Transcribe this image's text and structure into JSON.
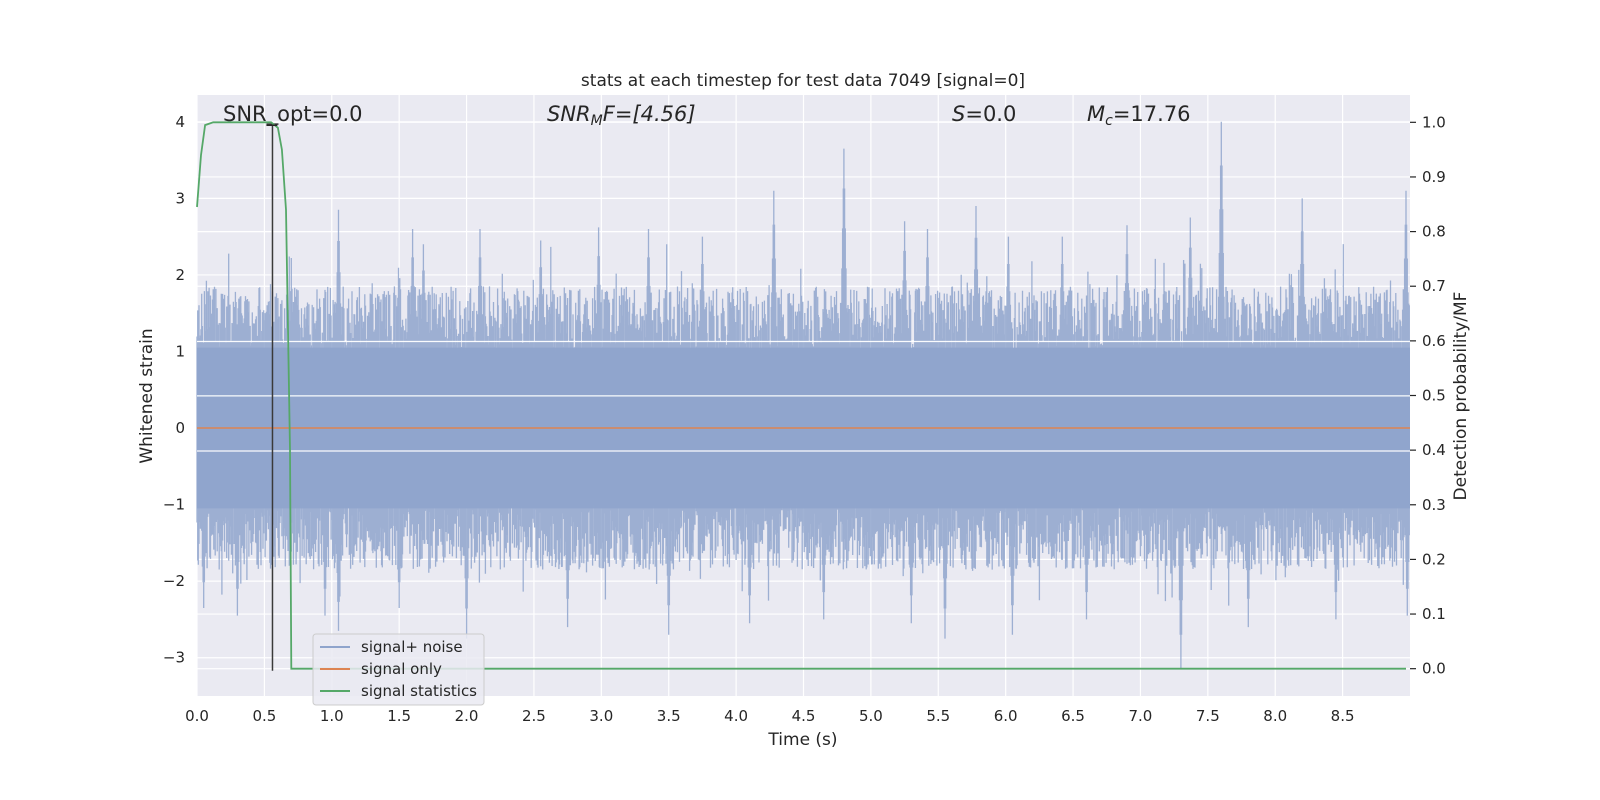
{
  "chart_data": {
    "type": "line",
    "title": "stats at each timestep for test data 7049 [signal=0]",
    "xlabel": "Time (s)",
    "ylabel": "Whitened strain",
    "y2label": "Detection probability/MF",
    "xlim": [
      0.0,
      9.0
    ],
    "ylim": [
      -3.5,
      4.35
    ],
    "y2lim": [
      -0.05,
      1.05
    ],
    "xticks": [
      "0.0",
      "0.5",
      "1.0",
      "1.5",
      "2.0",
      "2.5",
      "3.0",
      "3.5",
      "4.0",
      "4.5",
      "5.0",
      "5.5",
      "6.0",
      "6.5",
      "7.0",
      "7.5",
      "8.0",
      "8.5"
    ],
    "yticks": [
      "4",
      "3",
      "2",
      "1",
      "0",
      "−1",
      "−2",
      "−3"
    ],
    "y2ticks": [
      "1.0",
      "0.9",
      "0.8",
      "0.7",
      "0.6",
      "0.5",
      "0.4",
      "0.3",
      "0.2",
      "0.1",
      "0.0"
    ],
    "grid": true,
    "legend_position": "lower-left",
    "annotations": {
      "snr_opt": "SNR_opt=0.0",
      "snr_mf_base": "SNR",
      "snr_mf_sub": "M",
      "snr_mf_rest": "F=[4.56]",
      "s_italic": "S",
      "s_rest": "=0.0",
      "mc_base": "M",
      "mc_sub": "c",
      "mc_rest": "=17.76"
    },
    "series": [
      {
        "name": "signal+ noise",
        "color": "#8fa4cc",
        "envelope": true,
        "noise_amplitude": 1.0,
        "peaks": [
          [
            0.07,
            1.1
          ],
          [
            0.33,
            1.5
          ],
          [
            0.75,
            1.8
          ],
          [
            1.05,
            2.85
          ],
          [
            1.6,
            2.6
          ],
          [
            1.68,
            2.4
          ],
          [
            2.1,
            2.6
          ],
          [
            2.55,
            2.45
          ],
          [
            2.98,
            2.62
          ],
          [
            3.35,
            2.6
          ],
          [
            3.75,
            2.5
          ],
          [
            4.28,
            3.1
          ],
          [
            4.8,
            3.65
          ],
          [
            5.25,
            2.7
          ],
          [
            5.42,
            2.6
          ],
          [
            5.78,
            2.9
          ],
          [
            6.02,
            2.5
          ],
          [
            6.42,
            2.5
          ],
          [
            6.9,
            2.65
          ],
          [
            7.37,
            2.75
          ],
          [
            7.6,
            4.0
          ],
          [
            8.2,
            3.0
          ],
          [
            8.97,
            3.1
          ]
        ],
        "troughs": [
          [
            0.05,
            -2.35
          ],
          [
            0.3,
            -2.45
          ],
          [
            0.95,
            -2.45
          ],
          [
            1.05,
            -2.65
          ],
          [
            1.5,
            -2.35
          ],
          [
            2.0,
            -2.75
          ],
          [
            2.75,
            -2.6
          ],
          [
            3.5,
            -2.7
          ],
          [
            4.1,
            -2.55
          ],
          [
            4.65,
            -2.5
          ],
          [
            5.3,
            -2.55
          ],
          [
            5.55,
            -2.75
          ],
          [
            6.05,
            -2.7
          ],
          [
            6.6,
            -2.5
          ],
          [
            7.3,
            -3.15
          ],
          [
            7.8,
            -2.6
          ],
          [
            8.45,
            -2.5
          ],
          [
            8.98,
            -2.45
          ]
        ]
      },
      {
        "name": "signal only",
        "color": "#dd8452",
        "x": [
          0.0,
          9.0
        ],
        "y": [
          0.0,
          0.0
        ]
      },
      {
        "name": "signal statistics",
        "color": "#55a868",
        "axis": "right",
        "x": [
          0.0,
          0.03,
          0.06,
          0.12,
          0.2,
          0.3,
          0.4,
          0.5,
          0.55,
          0.6,
          0.63,
          0.66,
          0.69,
          0.7,
          0.75,
          1.0,
          2.0,
          3.0,
          4.0,
          5.0,
          6.0,
          7.0,
          8.0,
          8.5,
          8.97
        ],
        "y": [
          0.845,
          0.94,
          0.995,
          1.0,
          1.0,
          1.0,
          1.0,
          1.0,
          1.0,
          0.99,
          0.95,
          0.84,
          0.4,
          0.0,
          0.0,
          0.0,
          0.0,
          0.0,
          0.0,
          0.0,
          0.0,
          0.0,
          0.0,
          0.0,
          0.0
        ]
      }
    ],
    "marker_line": {
      "x": 0.56,
      "ymin": -3.17,
      "ymax": 3.97,
      "color": "#3a3a3a"
    }
  }
}
